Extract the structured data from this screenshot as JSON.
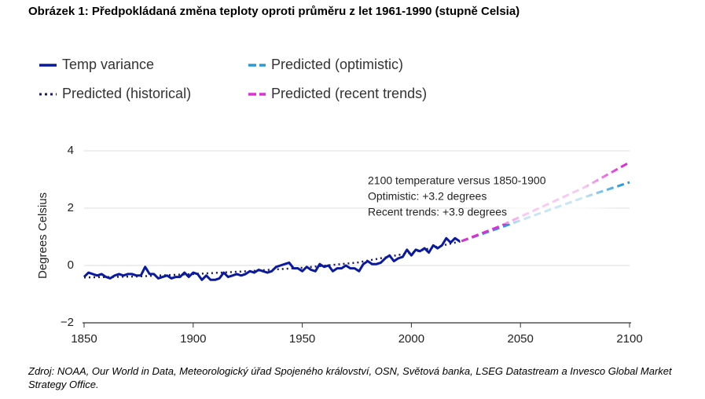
{
  "chart_data": {
    "type": "line",
    "title": "Obrázek 1: Předpokládaná změna teploty oproti průměru z let 1961-1990 (stupně Celsia)",
    "y_label": "Degrees Celsius",
    "annotations": [
      "2100 temperature versus 1850-1900",
      "Optimistic: +3.2 degrees",
      "Recent trends: +3.9 degrees"
    ],
    "source": "Zdroj: NOAA, Our World in Data, Meteorologický úřad Spojeného království, OSN, Světová banka, LSEG Datastream a Invesco Global Market Strategy Office.",
    "xlim": [
      1850,
      2100
    ],
    "xticks": [
      1850,
      1900,
      1950,
      2000,
      2050,
      2100
    ],
    "ylim": [
      -2,
      4
    ],
    "yticks": [
      {
        "value": -2,
        "label": "−2"
      },
      0,
      2,
      4
    ],
    "grid": true,
    "series": [
      {
        "name": "Temp variance",
        "color": "#0a1a9e",
        "dash": "solid",
        "x": [
          1850,
          1852,
          1854,
          1856,
          1858,
          1860,
          1862,
          1864,
          1866,
          1868,
          1870,
          1872,
          1874,
          1876,
          1878,
          1880,
          1882,
          1884,
          1886,
          1888,
          1890,
          1892,
          1894,
          1896,
          1898,
          1900,
          1902,
          1904,
          1906,
          1908,
          1910,
          1912,
          1914,
          1916,
          1918,
          1920,
          1922,
          1924,
          1926,
          1928,
          1930,
          1932,
          1934,
          1936,
          1938,
          1940,
          1942,
          1944,
          1946,
          1948,
          1950,
          1952,
          1954,
          1956,
          1958,
          1960,
          1962,
          1964,
          1966,
          1968,
          1970,
          1972,
          1974,
          1976,
          1978,
          1980,
          1982,
          1984,
          1986,
          1988,
          1990,
          1992,
          1994,
          1996,
          1998,
          2000,
          2002,
          2004,
          2006,
          2008,
          2010,
          2012,
          2014,
          2016,
          2018,
          2020,
          2022
        ],
        "values": [
          -0.4,
          -0.25,
          -0.3,
          -0.35,
          -0.3,
          -0.4,
          -0.45,
          -0.35,
          -0.3,
          -0.35,
          -0.3,
          -0.3,
          -0.35,
          -0.35,
          -0.05,
          -0.3,
          -0.3,
          -0.45,
          -0.4,
          -0.35,
          -0.45,
          -0.4,
          -0.4,
          -0.25,
          -0.4,
          -0.25,
          -0.3,
          -0.5,
          -0.35,
          -0.5,
          -0.5,
          -0.45,
          -0.25,
          -0.4,
          -0.35,
          -0.3,
          -0.35,
          -0.3,
          -0.2,
          -0.25,
          -0.15,
          -0.2,
          -0.25,
          -0.2,
          -0.05,
          0.0,
          0.05,
          0.1,
          -0.1,
          -0.1,
          -0.2,
          -0.05,
          -0.15,
          -0.2,
          0.05,
          -0.05,
          0.0,
          -0.2,
          -0.1,
          -0.1,
          0.0,
          -0.1,
          -0.1,
          -0.2,
          0.05,
          0.15,
          0.05,
          0.05,
          0.1,
          0.25,
          0.35,
          0.15,
          0.25,
          0.3,
          0.55,
          0.35,
          0.55,
          0.5,
          0.6,
          0.45,
          0.7,
          0.6,
          0.7,
          0.95,
          0.8,
          0.95,
          0.85
        ]
      },
      {
        "name": "Predicted (historical)",
        "color": "#1b1b6b",
        "dash": "dotted",
        "x": [
          1850,
          1875,
          1900,
          1925,
          1950,
          1975,
          2000,
          2023
        ],
        "values": [
          -0.42,
          -0.38,
          -0.3,
          -0.2,
          -0.08,
          0.1,
          0.45,
          0.85
        ]
      },
      {
        "name": "Predicted (optimistic)",
        "color": "#2b9ad9",
        "dash": "dashed",
        "x": [
          2023,
          2040,
          2060,
          2080,
          2100
        ],
        "values": [
          0.85,
          1.3,
          1.85,
          2.4,
          2.9
        ]
      },
      {
        "name": "Predicted (recent trends)",
        "color": "#dd2fd4",
        "dash": "dashed",
        "x": [
          2023,
          2040,
          2060,
          2080,
          2100
        ],
        "values": [
          0.85,
          1.35,
          2.05,
          2.75,
          3.6
        ]
      }
    ]
  }
}
